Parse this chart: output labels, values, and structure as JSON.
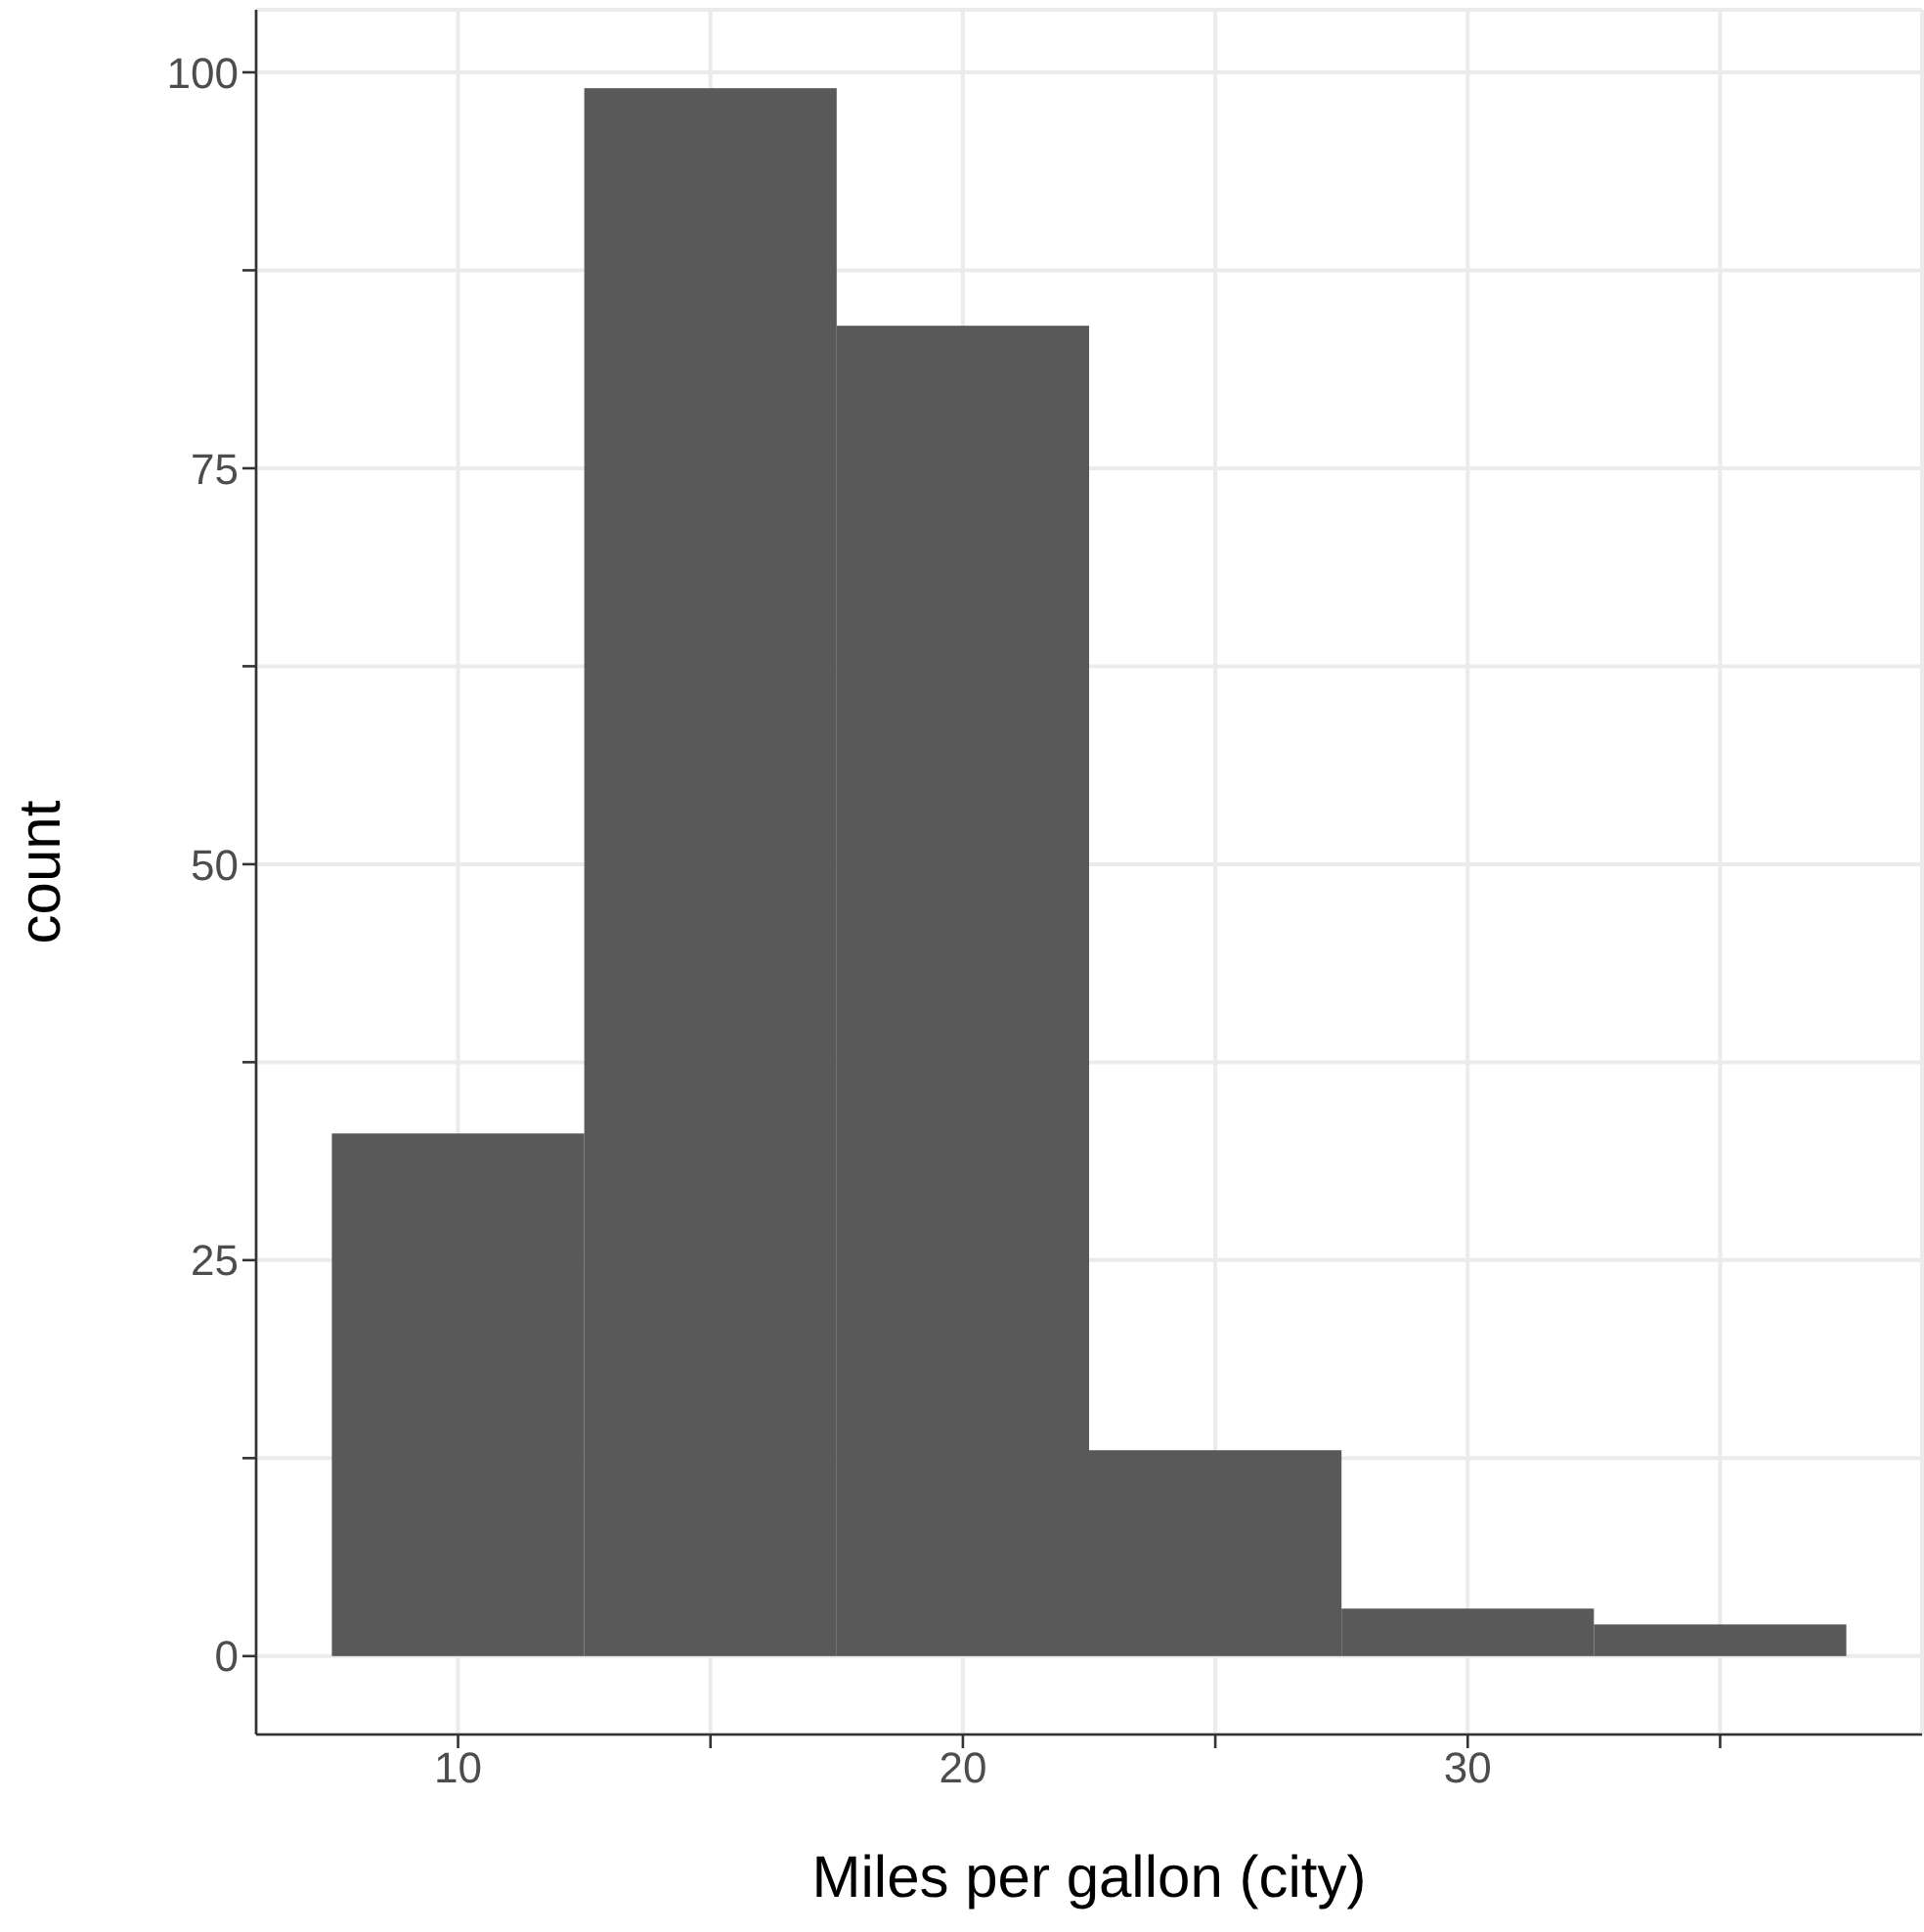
{
  "chart_data": {
    "type": "histogram",
    "xlabel": "Miles per gallon (city)",
    "ylabel": "count",
    "bins": [
      7.5,
      12.5,
      17.5,
      22.5,
      27.5,
      32.5,
      37.5
    ],
    "values": [
      33,
      99,
      84,
      13,
      3,
      2
    ],
    "color": "#595959",
    "xlim": [
      6,
      39
    ],
    "xticks": [
      10,
      {
        "value": 15,
        "label": null
      },
      20,
      {
        "value": 25,
        "label": null
      },
      30,
      {
        "value": 35,
        "label": null
      }
    ],
    "ylim": [
      -4.95,
      103.95
    ],
    "yticks": [
      0,
      {
        "value": 12.5,
        "label": null
      },
      25,
      {
        "value": 37.5,
        "label": null
      },
      50,
      {
        "value": 62.5,
        "label": null
      },
      75,
      {
        "value": 87.5,
        "label": null
      },
      100
    ],
    "grid": true
  }
}
